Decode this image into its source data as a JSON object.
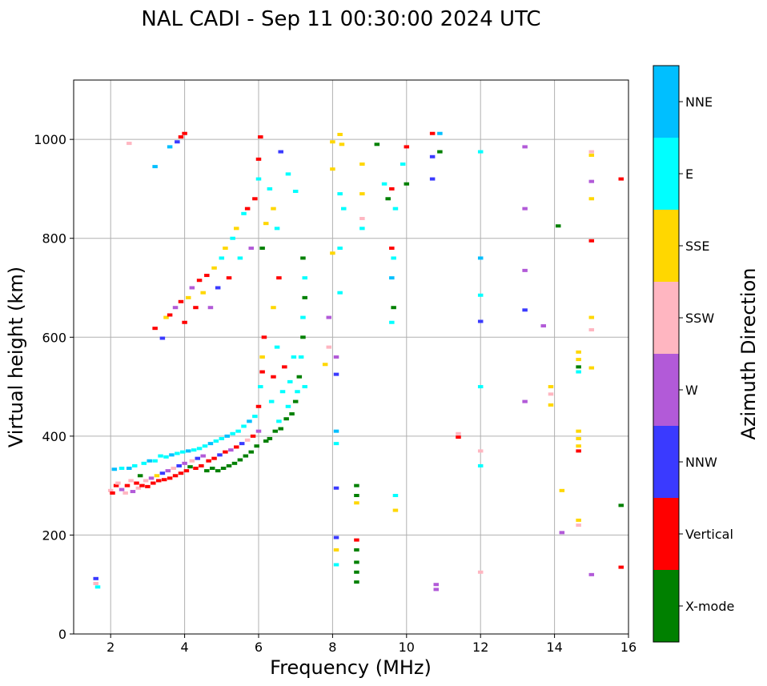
{
  "chart_data": {
    "type": "scatter",
    "title": "NAL CADI - Sep 11 00:30:00 2024 UTC",
    "xlabel": "Frequency (MHz)",
    "ylabel": "Virtual height (km)",
    "xlim": [
      1,
      16
    ],
    "ylim": [
      0,
      1120
    ],
    "xticks": [
      2,
      4,
      6,
      8,
      10,
      12,
      14,
      16
    ],
    "yticks": [
      0,
      200,
      400,
      600,
      800,
      1000
    ],
    "grid": true,
    "colorbar": {
      "label": "Azimuth Direction",
      "categories": [
        {
          "name": "X-mode",
          "color": "#008000"
        },
        {
          "name": "Vertical",
          "color": "#ff0000"
        },
        {
          "name": "NNW",
          "color": "#3a3aff"
        },
        {
          "name": "W",
          "color": "#b25ad8"
        },
        {
          "name": "SSW",
          "color": "#ffb6c1"
        },
        {
          "name": "SSE",
          "color": "#ffd700"
        },
        {
          "name": "E",
          "color": "#00ffff"
        },
        {
          "name": "NNE",
          "color": "#00bfff"
        }
      ]
    },
    "points": [
      {
        "f": 1.6,
        "h": 112,
        "c": "NNW"
      },
      {
        "f": 1.65,
        "h": 95,
        "c": "E"
      },
      {
        "f": 1.6,
        "h": 102,
        "c": "SSW"
      },
      {
        "f": 2.0,
        "h": 290,
        "c": "SSW"
      },
      {
        "f": 2.05,
        "h": 285,
        "c": "Vertical"
      },
      {
        "f": 2.1,
        "h": 333,
        "c": "NNE"
      },
      {
        "f": 2.15,
        "h": 300,
        "c": "Vertical"
      },
      {
        "f": 2.2,
        "h": 305,
        "c": "SSW"
      },
      {
        "f": 2.3,
        "h": 292,
        "c": "W"
      },
      {
        "f": 2.3,
        "h": 335,
        "c": "E"
      },
      {
        "f": 2.4,
        "h": 285,
        "c": "SSW"
      },
      {
        "f": 2.45,
        "h": 300,
        "c": "Vertical"
      },
      {
        "f": 2.5,
        "h": 335,
        "c": "NNE"
      },
      {
        "f": 2.55,
        "h": 310,
        "c": "SSW"
      },
      {
        "f": 2.6,
        "h": 288,
        "c": "W"
      },
      {
        "f": 2.65,
        "h": 340,
        "c": "E"
      },
      {
        "f": 2.7,
        "h": 305,
        "c": "Vertical"
      },
      {
        "f": 2.75,
        "h": 295,
        "c": "SSW"
      },
      {
        "f": 2.8,
        "h": 320,
        "c": "X-mode"
      },
      {
        "f": 2.85,
        "h": 300,
        "c": "Vertical"
      },
      {
        "f": 2.9,
        "h": 345,
        "c": "E"
      },
      {
        "f": 2.95,
        "h": 310,
        "c": "SSW"
      },
      {
        "f": 3.0,
        "h": 298,
        "c": "Vertical"
      },
      {
        "f": 3.05,
        "h": 350,
        "c": "NNE"
      },
      {
        "f": 3.1,
        "h": 315,
        "c": "W"
      },
      {
        "f": 3.15,
        "h": 305,
        "c": "Vertical"
      },
      {
        "f": 3.2,
        "h": 350,
        "c": "E"
      },
      {
        "f": 3.25,
        "h": 320,
        "c": "SSE"
      },
      {
        "f": 3.3,
        "h": 310,
        "c": "Vertical"
      },
      {
        "f": 3.35,
        "h": 360,
        "c": "E"
      },
      {
        "f": 3.4,
        "h": 325,
        "c": "NNW"
      },
      {
        "f": 3.45,
        "h": 312,
        "c": "Vertical"
      },
      {
        "f": 3.5,
        "h": 358,
        "c": "E"
      },
      {
        "f": 3.55,
        "h": 330,
        "c": "W"
      },
      {
        "f": 3.6,
        "h": 315,
        "c": "Vertical"
      },
      {
        "f": 3.65,
        "h": 362,
        "c": "NNE"
      },
      {
        "f": 3.7,
        "h": 335,
        "c": "SSW"
      },
      {
        "f": 3.75,
        "h": 320,
        "c": "Vertical"
      },
      {
        "f": 3.8,
        "h": 365,
        "c": "E"
      },
      {
        "f": 3.85,
        "h": 340,
        "c": "NNW"
      },
      {
        "f": 3.9,
        "h": 325,
        "c": "Vertical"
      },
      {
        "f": 3.95,
        "h": 368,
        "c": "E"
      },
      {
        "f": 4.0,
        "h": 345,
        "c": "W"
      },
      {
        "f": 4.05,
        "h": 330,
        "c": "Vertical"
      },
      {
        "f": 4.1,
        "h": 370,
        "c": "NNE"
      },
      {
        "f": 4.15,
        "h": 338,
        "c": "X-mode"
      },
      {
        "f": 4.2,
        "h": 350,
        "c": "SSW"
      },
      {
        "f": 4.25,
        "h": 372,
        "c": "E"
      },
      {
        "f": 4.3,
        "h": 335,
        "c": "Vertical"
      },
      {
        "f": 4.35,
        "h": 355,
        "c": "NNW"
      },
      {
        "f": 4.4,
        "h": 375,
        "c": "E"
      },
      {
        "f": 4.45,
        "h": 340,
        "c": "Vertical"
      },
      {
        "f": 4.5,
        "h": 360,
        "c": "W"
      },
      {
        "f": 4.55,
        "h": 380,
        "c": "E"
      },
      {
        "f": 4.6,
        "h": 330,
        "c": "X-mode"
      },
      {
        "f": 4.65,
        "h": 350,
        "c": "Vertical"
      },
      {
        "f": 4.7,
        "h": 385,
        "c": "NNE"
      },
      {
        "f": 4.75,
        "h": 335,
        "c": "X-mode"
      },
      {
        "f": 4.8,
        "h": 355,
        "c": "Vertical"
      },
      {
        "f": 4.85,
        "h": 390,
        "c": "E"
      },
      {
        "f": 4.9,
        "h": 330,
        "c": "X-mode"
      },
      {
        "f": 4.95,
        "h": 362,
        "c": "NNW"
      },
      {
        "f": 5.0,
        "h": 395,
        "c": "E"
      },
      {
        "f": 5.05,
        "h": 335,
        "c": "X-mode"
      },
      {
        "f": 5.1,
        "h": 368,
        "c": "Vertical"
      },
      {
        "f": 5.15,
        "h": 400,
        "c": "NNE"
      },
      {
        "f": 5.2,
        "h": 340,
        "c": "X-mode"
      },
      {
        "f": 5.25,
        "h": 372,
        "c": "W"
      },
      {
        "f": 5.3,
        "h": 405,
        "c": "E"
      },
      {
        "f": 5.35,
        "h": 345,
        "c": "X-mode"
      },
      {
        "f": 5.4,
        "h": 378,
        "c": "Vertical"
      },
      {
        "f": 5.45,
        "h": 410,
        "c": "E"
      },
      {
        "f": 5.5,
        "h": 352,
        "c": "X-mode"
      },
      {
        "f": 5.55,
        "h": 385,
        "c": "NNW"
      },
      {
        "f": 5.6,
        "h": 420,
        "c": "E"
      },
      {
        "f": 5.65,
        "h": 360,
        "c": "X-mode"
      },
      {
        "f": 5.7,
        "h": 392,
        "c": "SSW"
      },
      {
        "f": 5.75,
        "h": 430,
        "c": "NNE"
      },
      {
        "f": 5.8,
        "h": 368,
        "c": "X-mode"
      },
      {
        "f": 5.85,
        "h": 400,
        "c": "Vertical"
      },
      {
        "f": 5.9,
        "h": 440,
        "c": "E"
      },
      {
        "f": 5.95,
        "h": 380,
        "c": "X-mode"
      },
      {
        "f": 6.0,
        "h": 410,
        "c": "W"
      },
      {
        "f": 6.0,
        "h": 460,
        "c": "Vertical"
      },
      {
        "f": 6.05,
        "h": 500,
        "c": "E"
      },
      {
        "f": 6.1,
        "h": 530,
        "c": "Vertical"
      },
      {
        "f": 6.1,
        "h": 560,
        "c": "SSE"
      },
      {
        "f": 6.15,
        "h": 600,
        "c": "Vertical"
      },
      {
        "f": 6.2,
        "h": 390,
        "c": "X-mode"
      },
      {
        "f": 6.3,
        "h": 395,
        "c": "X-mode"
      },
      {
        "f": 6.35,
        "h": 470,
        "c": "E"
      },
      {
        "f": 6.4,
        "h": 520,
        "c": "Vertical"
      },
      {
        "f": 6.45,
        "h": 410,
        "c": "X-mode"
      },
      {
        "f": 6.5,
        "h": 580,
        "c": "E"
      },
      {
        "f": 6.55,
        "h": 430,
        "c": "E"
      },
      {
        "f": 6.6,
        "h": 415,
        "c": "X-mode"
      },
      {
        "f": 6.65,
        "h": 490,
        "c": "E"
      },
      {
        "f": 6.7,
        "h": 540,
        "c": "Vertical"
      },
      {
        "f": 6.75,
        "h": 435,
        "c": "X-mode"
      },
      {
        "f": 6.8,
        "h": 460,
        "c": "E"
      },
      {
        "f": 6.85,
        "h": 510,
        "c": "E"
      },
      {
        "f": 6.9,
        "h": 445,
        "c": "X-mode"
      },
      {
        "f": 6.95,
        "h": 560,
        "c": "E"
      },
      {
        "f": 7.0,
        "h": 470,
        "c": "X-mode"
      },
      {
        "f": 7.05,
        "h": 490,
        "c": "E"
      },
      {
        "f": 7.1,
        "h": 520,
        "c": "X-mode"
      },
      {
        "f": 7.15,
        "h": 560,
        "c": "E"
      },
      {
        "f": 7.2,
        "h": 600,
        "c": "X-mode"
      },
      {
        "f": 7.2,
        "h": 640,
        "c": "E"
      },
      {
        "f": 7.25,
        "h": 680,
        "c": "X-mode"
      },
      {
        "f": 7.25,
        "h": 720,
        "c": "E"
      },
      {
        "f": 7.2,
        "h": 760,
        "c": "X-mode"
      },
      {
        "f": 7.25,
        "h": 500,
        "c": "E"
      },
      {
        "f": 3.2,
        "h": 618,
        "c": "Vertical"
      },
      {
        "f": 3.4,
        "h": 598,
        "c": "NNW"
      },
      {
        "f": 3.5,
        "h": 640,
        "c": "SSE"
      },
      {
        "f": 3.6,
        "h": 645,
        "c": "Vertical"
      },
      {
        "f": 3.75,
        "h": 660,
        "c": "W"
      },
      {
        "f": 3.9,
        "h": 672,
        "c": "Vertical"
      },
      {
        "f": 4.0,
        "h": 630,
        "c": "Vertical"
      },
      {
        "f": 4.1,
        "h": 680,
        "c": "SSE"
      },
      {
        "f": 4.2,
        "h": 700,
        "c": "W"
      },
      {
        "f": 4.3,
        "h": 660,
        "c": "Vertical"
      },
      {
        "f": 4.4,
        "h": 715,
        "c": "Vertical"
      },
      {
        "f": 4.5,
        "h": 690,
        "c": "SSE"
      },
      {
        "f": 4.6,
        "h": 725,
        "c": "Vertical"
      },
      {
        "f": 4.7,
        "h": 660,
        "c": "W"
      },
      {
        "f": 4.8,
        "h": 740,
        "c": "SSE"
      },
      {
        "f": 4.9,
        "h": 700,
        "c": "NNW"
      },
      {
        "f": 5.0,
        "h": 760,
        "c": "E"
      },
      {
        "f": 5.1,
        "h": 780,
        "c": "SSE"
      },
      {
        "f": 5.2,
        "h": 720,
        "c": "Vertical"
      },
      {
        "f": 5.3,
        "h": 800,
        "c": "E"
      },
      {
        "f": 5.4,
        "h": 820,
        "c": "SSE"
      },
      {
        "f": 5.5,
        "h": 760,
        "c": "E"
      },
      {
        "f": 5.6,
        "h": 850,
        "c": "E"
      },
      {
        "f": 5.7,
        "h": 860,
        "c": "Vertical"
      },
      {
        "f": 5.8,
        "h": 780,
        "c": "W"
      },
      {
        "f": 5.9,
        "h": 880,
        "c": "Vertical"
      },
      {
        "f": 6.0,
        "h": 920,
        "c": "E"
      },
      {
        "f": 6.0,
        "h": 960,
        "c": "Vertical"
      },
      {
        "f": 6.05,
        "h": 1005,
        "c": "Vertical"
      },
      {
        "f": 6.2,
        "h": 830,
        "c": "SSE"
      },
      {
        "f": 6.3,
        "h": 900,
        "c": "E"
      },
      {
        "f": 6.4,
        "h": 860,
        "c": "SSE"
      },
      {
        "f": 6.5,
        "h": 820,
        "c": "E"
      },
      {
        "f": 6.55,
        "h": 720,
        "c": "Vertical"
      },
      {
        "f": 6.4,
        "h": 660,
        "c": "SSE"
      },
      {
        "f": 6.1,
        "h": 780,
        "c": "X-mode"
      },
      {
        "f": 3.2,
        "h": 945,
        "c": "NNE"
      },
      {
        "f": 3.6,
        "h": 985,
        "c": "NNE"
      },
      {
        "f": 3.8,
        "h": 995,
        "c": "NNW"
      },
      {
        "f": 3.9,
        "h": 1005,
        "c": "Vertical"
      },
      {
        "f": 4.0,
        "h": 1012,
        "c": "Vertical"
      },
      {
        "f": 2.5,
        "h": 992,
        "c": "SSW"
      },
      {
        "f": 6.6,
        "h": 975,
        "c": "NNW"
      },
      {
        "f": 6.8,
        "h": 930,
        "c": "E"
      },
      {
        "f": 7.0,
        "h": 895,
        "c": "E"
      },
      {
        "f": 8.0,
        "h": 995,
        "c": "SSE"
      },
      {
        "f": 8.2,
        "h": 1010,
        "c": "SSE"
      },
      {
        "f": 8.25,
        "h": 990,
        "c": "SSE"
      },
      {
        "f": 8.2,
        "h": 890,
        "c": "E"
      },
      {
        "f": 8.0,
        "h": 940,
        "c": "SSE"
      },
      {
        "f": 8.3,
        "h": 860,
        "c": "E"
      },
      {
        "f": 8.2,
        "h": 780,
        "c": "E"
      },
      {
        "f": 8.0,
        "h": 770,
        "c": "SSE"
      },
      {
        "f": 8.2,
        "h": 690,
        "c": "E"
      },
      {
        "f": 8.8,
        "h": 890,
        "c": "SSE"
      },
      {
        "f": 8.8,
        "h": 840,
        "c": "SSW"
      },
      {
        "f": 8.8,
        "h": 820,
        "c": "E"
      },
      {
        "f": 8.8,
        "h": 950,
        "c": "SSE"
      },
      {
        "f": 9.2,
        "h": 990,
        "c": "X-mode"
      },
      {
        "f": 9.4,
        "h": 910,
        "c": "E"
      },
      {
        "f": 9.5,
        "h": 880,
        "c": "X-mode"
      },
      {
        "f": 9.6,
        "h": 900,
        "c": "Vertical"
      },
      {
        "f": 9.7,
        "h": 860,
        "c": "E"
      },
      {
        "f": 9.6,
        "h": 780,
        "c": "Vertical"
      },
      {
        "f": 9.65,
        "h": 760,
        "c": "E"
      },
      {
        "f": 9.6,
        "h": 720,
        "c": "NNE"
      },
      {
        "f": 9.65,
        "h": 660,
        "c": "X-mode"
      },
      {
        "f": 9.6,
        "h": 630,
        "c": "E"
      },
      {
        "f": 9.9,
        "h": 950,
        "c": "E"
      },
      {
        "f": 10.0,
        "h": 985,
        "c": "Vertical"
      },
      {
        "f": 10.0,
        "h": 910,
        "c": "X-mode"
      },
      {
        "f": 10.7,
        "h": 1012,
        "c": "Vertical"
      },
      {
        "f": 10.9,
        "h": 1012,
        "c": "NNE"
      },
      {
        "f": 10.7,
        "h": 965,
        "c": "NNW"
      },
      {
        "f": 10.7,
        "h": 920,
        "c": "NNW"
      },
      {
        "f": 10.9,
        "h": 975,
        "c": "X-mode"
      },
      {
        "f": 7.9,
        "h": 640,
        "c": "W"
      },
      {
        "f": 7.8,
        "h": 545,
        "c": "SSE"
      },
      {
        "f": 7.9,
        "h": 580,
        "c": "SSW"
      },
      {
        "f": 8.1,
        "h": 525,
        "c": "NNW"
      },
      {
        "f": 8.1,
        "h": 560,
        "c": "W"
      },
      {
        "f": 8.1,
        "h": 410,
        "c": "NNE"
      },
      {
        "f": 8.1,
        "h": 385,
        "c": "E"
      },
      {
        "f": 8.1,
        "h": 295,
        "c": "NNW"
      },
      {
        "f": 8.1,
        "h": 195,
        "c": "NNW"
      },
      {
        "f": 8.1,
        "h": 170,
        "c": "SSE"
      },
      {
        "f": 8.1,
        "h": 140,
        "c": "E"
      },
      {
        "f": 8.65,
        "h": 300,
        "c": "X-mode"
      },
      {
        "f": 8.65,
        "h": 280,
        "c": "X-mode"
      },
      {
        "f": 8.65,
        "h": 265,
        "c": "SSE"
      },
      {
        "f": 8.65,
        "h": 190,
        "c": "Vertical"
      },
      {
        "f": 8.65,
        "h": 170,
        "c": "X-mode"
      },
      {
        "f": 8.65,
        "h": 145,
        "c": "X-mode"
      },
      {
        "f": 8.65,
        "h": 125,
        "c": "X-mode"
      },
      {
        "f": 8.65,
        "h": 105,
        "c": "X-mode"
      },
      {
        "f": 9.7,
        "h": 280,
        "c": "E"
      },
      {
        "f": 9.7,
        "h": 250,
        "c": "SSE"
      },
      {
        "f": 10.8,
        "h": 100,
        "c": "W"
      },
      {
        "f": 10.8,
        "h": 90,
        "c": "W"
      },
      {
        "f": 11.4,
        "h": 405,
        "c": "SSW"
      },
      {
        "f": 11.4,
        "h": 398,
        "c": "Vertical"
      },
      {
        "f": 12.0,
        "h": 760,
        "c": "NNE"
      },
      {
        "f": 12.0,
        "h": 975,
        "c": "E"
      },
      {
        "f": 12.0,
        "h": 685,
        "c": "E"
      },
      {
        "f": 12.0,
        "h": 632,
        "c": "NNW"
      },
      {
        "f": 12.0,
        "h": 500,
        "c": "E"
      },
      {
        "f": 12.0,
        "h": 370,
        "c": "SSW"
      },
      {
        "f": 12.0,
        "h": 340,
        "c": "E"
      },
      {
        "f": 12.0,
        "h": 125,
        "c": "SSW"
      },
      {
        "f": 13.2,
        "h": 985,
        "c": "W"
      },
      {
        "f": 13.2,
        "h": 860,
        "c": "W"
      },
      {
        "f": 13.2,
        "h": 735,
        "c": "W"
      },
      {
        "f": 13.2,
        "h": 655,
        "c": "NNW"
      },
      {
        "f": 13.2,
        "h": 470,
        "c": "W"
      },
      {
        "f": 13.7,
        "h": 623,
        "c": "W"
      },
      {
        "f": 13.9,
        "h": 500,
        "c": "SSE"
      },
      {
        "f": 13.9,
        "h": 485,
        "c": "SSW"
      },
      {
        "f": 13.9,
        "h": 463,
        "c": "SSE"
      },
      {
        "f": 14.1,
        "h": 825,
        "c": "X-mode"
      },
      {
        "f": 14.2,
        "h": 290,
        "c": "SSE"
      },
      {
        "f": 14.2,
        "h": 205,
        "c": "W"
      },
      {
        "f": 14.65,
        "h": 570,
        "c": "SSE"
      },
      {
        "f": 14.65,
        "h": 555,
        "c": "SSE"
      },
      {
        "f": 14.65,
        "h": 540,
        "c": "X-mode"
      },
      {
        "f": 14.65,
        "h": 530,
        "c": "E"
      },
      {
        "f": 14.65,
        "h": 410,
        "c": "SSE"
      },
      {
        "f": 14.65,
        "h": 395,
        "c": "SSE"
      },
      {
        "f": 14.65,
        "h": 380,
        "c": "SSE"
      },
      {
        "f": 14.65,
        "h": 370,
        "c": "Vertical"
      },
      {
        "f": 14.65,
        "h": 230,
        "c": "SSE"
      },
      {
        "f": 14.65,
        "h": 220,
        "c": "SSW"
      },
      {
        "f": 15.0,
        "h": 975,
        "c": "SSW"
      },
      {
        "f": 15.0,
        "h": 968,
        "c": "SSE"
      },
      {
        "f": 15.0,
        "h": 915,
        "c": "W"
      },
      {
        "f": 15.0,
        "h": 880,
        "c": "SSE"
      },
      {
        "f": 15.0,
        "h": 795,
        "c": "Vertical"
      },
      {
        "f": 15.0,
        "h": 640,
        "c": "SSE"
      },
      {
        "f": 15.0,
        "h": 615,
        "c": "SSW"
      },
      {
        "f": 15.0,
        "h": 538,
        "c": "SSE"
      },
      {
        "f": 15.0,
        "h": 120,
        "c": "W"
      },
      {
        "f": 15.8,
        "h": 920,
        "c": "Vertical"
      },
      {
        "f": 15.8,
        "h": 260,
        "c": "X-mode"
      },
      {
        "f": 15.8,
        "h": 135,
        "c": "Vertical"
      }
    ]
  }
}
